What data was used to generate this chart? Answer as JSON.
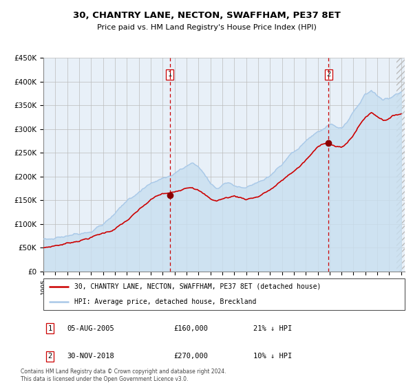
{
  "title": "30, CHANTRY LANE, NECTON, SWAFFHAM, PE37 8ET",
  "subtitle": "Price paid vs. HM Land Registry's House Price Index (HPI)",
  "legend_line1": "30, CHANTRY LANE, NECTON, SWAFFHAM, PE37 8ET (detached house)",
  "legend_line2": "HPI: Average price, detached house, Breckland",
  "annotation1": {
    "label": "1",
    "date": "05-AUG-2005",
    "price": "£160,000",
    "note": "21% ↓ HPI"
  },
  "annotation2": {
    "label": "2",
    "date": "30-NOV-2018",
    "price": "£270,000",
    "note": "10% ↓ HPI"
  },
  "footer": "Contains HM Land Registry data © Crown copyright and database right 2024.\nThis data is licensed under the Open Government Licence v3.0.",
  "x_start_year": 1995,
  "x_end_year": 2025,
  "y_min": 0,
  "y_max": 450000,
  "hpi_color": "#a8c8e8",
  "price_color": "#cc0000",
  "plot_bg": "#e8f0f8",
  "fill_color": "#c8dff0",
  "grid_color": "#bbbbbb",
  "vline_color": "#cc0000",
  "sale1_year": 2005.6,
  "sale2_year": 2018.92,
  "sale1_price": 160000,
  "sale2_price": 270000,
  "hpi_keypoints": [
    [
      1995.0,
      68000
    ],
    [
      1996.0,
      72000
    ],
    [
      1997.0,
      78000
    ],
    [
      1998.0,
      85000
    ],
    [
      1999.0,
      95000
    ],
    [
      2000.0,
      110000
    ],
    [
      2001.0,
      130000
    ],
    [
      2002.0,
      155000
    ],
    [
      2003.0,
      178000
    ],
    [
      2004.0,
      195000
    ],
    [
      2005.0,
      205000
    ],
    [
      2006.0,
      215000
    ],
    [
      2006.5,
      225000
    ],
    [
      2007.0,
      232000
    ],
    [
      2007.5,
      238000
    ],
    [
      2008.0,
      230000
    ],
    [
      2008.5,
      215000
    ],
    [
      2009.0,
      195000
    ],
    [
      2009.5,
      185000
    ],
    [
      2010.0,
      192000
    ],
    [
      2010.5,
      200000
    ],
    [
      2011.0,
      195000
    ],
    [
      2011.5,
      190000
    ],
    [
      2012.0,
      188000
    ],
    [
      2012.5,
      192000
    ],
    [
      2013.0,
      195000
    ],
    [
      2013.5,
      200000
    ],
    [
      2014.0,
      208000
    ],
    [
      2014.5,
      218000
    ],
    [
      2015.0,
      228000
    ],
    [
      2015.5,
      238000
    ],
    [
      2016.0,
      248000
    ],
    [
      2016.5,
      258000
    ],
    [
      2017.0,
      268000
    ],
    [
      2017.5,
      278000
    ],
    [
      2018.0,
      285000
    ],
    [
      2018.5,
      292000
    ],
    [
      2019.0,
      298000
    ],
    [
      2019.5,
      295000
    ],
    [
      2020.0,
      292000
    ],
    [
      2020.5,
      308000
    ],
    [
      2021.0,
      328000
    ],
    [
      2021.5,
      348000
    ],
    [
      2022.0,
      368000
    ],
    [
      2022.5,
      375000
    ],
    [
      2023.0,
      365000
    ],
    [
      2023.5,
      358000
    ],
    [
      2024.0,
      362000
    ],
    [
      2024.5,
      370000
    ],
    [
      2025.0,
      378000
    ]
  ],
  "price_keypoints": [
    [
      1995.0,
      50000
    ],
    [
      1995.5,
      52000
    ],
    [
      1996.0,
      55000
    ],
    [
      1996.5,
      57000
    ],
    [
      1997.0,
      60000
    ],
    [
      1997.5,
      63000
    ],
    [
      1998.0,
      67000
    ],
    [
      1998.5,
      70000
    ],
    [
      1999.0,
      74000
    ],
    [
      1999.5,
      78000
    ],
    [
      2000.0,
      82000
    ],
    [
      2000.5,
      86000
    ],
    [
      2001.0,
      92000
    ],
    [
      2001.5,
      100000
    ],
    [
      2002.0,
      108000
    ],
    [
      2002.5,
      118000
    ],
    [
      2003.0,
      128000
    ],
    [
      2003.5,
      138000
    ],
    [
      2004.0,
      148000
    ],
    [
      2004.5,
      155000
    ],
    [
      2005.0,
      160000
    ],
    [
      2005.6,
      160000
    ],
    [
      2006.0,
      162000
    ],
    [
      2006.5,
      168000
    ],
    [
      2007.0,
      175000
    ],
    [
      2007.5,
      178000
    ],
    [
      2008.0,
      172000
    ],
    [
      2008.5,
      162000
    ],
    [
      2009.0,
      152000
    ],
    [
      2009.5,
      148000
    ],
    [
      2010.0,
      152000
    ],
    [
      2010.5,
      155000
    ],
    [
      2011.0,
      158000
    ],
    [
      2011.5,
      155000
    ],
    [
      2012.0,
      152000
    ],
    [
      2012.5,
      155000
    ],
    [
      2013.0,
      158000
    ],
    [
      2013.5,
      165000
    ],
    [
      2014.0,
      172000
    ],
    [
      2014.5,
      180000
    ],
    [
      2015.0,
      190000
    ],
    [
      2015.5,
      200000
    ],
    [
      2016.0,
      210000
    ],
    [
      2016.5,
      220000
    ],
    [
      2017.0,
      232000
    ],
    [
      2017.5,
      245000
    ],
    [
      2018.0,
      258000
    ],
    [
      2018.5,
      268000
    ],
    [
      2018.92,
      270000
    ],
    [
      2019.0,
      268000
    ],
    [
      2019.5,
      262000
    ],
    [
      2020.0,
      258000
    ],
    [
      2020.5,
      268000
    ],
    [
      2021.0,
      285000
    ],
    [
      2021.5,
      305000
    ],
    [
      2022.0,
      322000
    ],
    [
      2022.5,
      332000
    ],
    [
      2023.0,
      325000
    ],
    [
      2023.5,
      318000
    ],
    [
      2024.0,
      322000
    ],
    [
      2024.5,
      328000
    ],
    [
      2025.0,
      332000
    ]
  ]
}
